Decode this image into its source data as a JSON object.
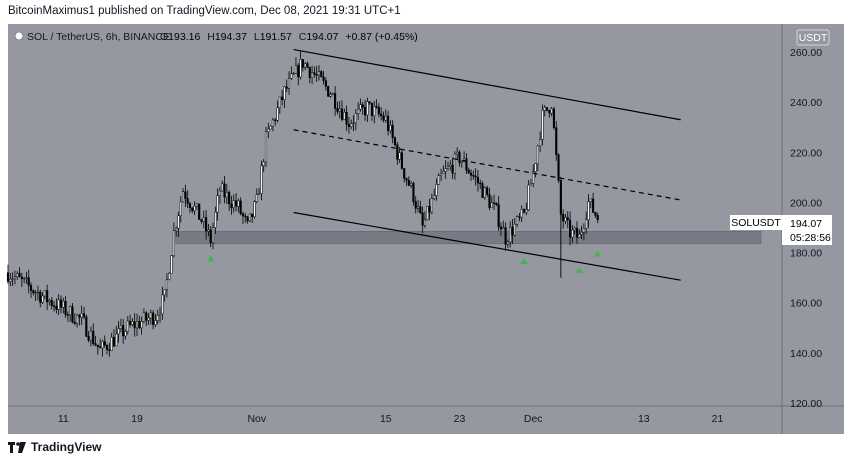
{
  "header": {
    "publisher_line": "BitcoinMaximus1 published on TradingView.com, Dec 08, 2021 19:31 UTC+1"
  },
  "legend": {
    "symbol": "SOL / TetherUS, 6h, BINANCE",
    "o_label": "O",
    "o_value": "193.16",
    "h_label": "H",
    "h_value": "194.37",
    "l_label": "L",
    "l_value": "191.57",
    "c_label": "C",
    "c_value": "194.07",
    "change": "+0.87 (+0.45%)"
  },
  "currency_button": "USDT",
  "price_tag": {
    "symbol": "SOLUSDT",
    "price": "194.07",
    "countdown": "05:28:56"
  },
  "footer": {
    "brand": "TradingView"
  },
  "colors": {
    "pane": "#9598a1",
    "support_zone": "#787b86",
    "arrow": "#4caf50",
    "candle": "#000000"
  },
  "chart_data": {
    "type": "candlestick",
    "ylim": [
      120,
      270
    ],
    "y_ticks": [
      "120.00",
      "140.00",
      "160.00",
      "180.00",
      "200.00",
      "220.00",
      "240.00",
      "260.00"
    ],
    "x_ticks": [
      "11",
      "19",
      "Nov",
      "15",
      "23",
      "Dec",
      "13",
      "21"
    ],
    "x_range": [
      "Oct 05 2021",
      "Dec 28 2021"
    ],
    "support_zone": [
      183.5,
      188.5
    ],
    "channel": {
      "upper": [
        [
          "Nov 05 2021",
          261
        ],
        [
          "Dec 17 2021",
          233
        ]
      ],
      "middle": [
        [
          "Nov 05 2021",
          229
        ],
        [
          "Dec 17 2021",
          201
        ]
      ],
      "lower": [
        [
          "Nov 05 2021",
          196
        ],
        [
          "Dec 17 2021",
          169
        ]
      ]
    },
    "support_arrows": [
      "Oct 27 2021",
      "Nov 30 2021",
      "Dec 06 2021",
      "Dec 08 2021"
    ],
    "anchors": [
      [
        "Oct 05 2021",
        172
      ],
      [
        "Oct 09 2021",
        162
      ],
      [
        "Oct 13 2021",
        153
      ],
      [
        "Oct 15 2021",
        141
      ],
      [
        "Oct 18 2021",
        150
      ],
      [
        "Oct 21 2021",
        155
      ],
      [
        "Oct 22 2021",
        162
      ],
      [
        "Oct 23 2021",
        188
      ],
      [
        "Oct 24 2021",
        205
      ],
      [
        "Oct 26 2021",
        193
      ],
      [
        "Oct 27 2021",
        185
      ],
      [
        "Oct 28 2021",
        205
      ],
      [
        "Oct 30 2021",
        198
      ],
      [
        "Oct 31 2021",
        190
      ],
      [
        "Nov 01 2021",
        200
      ],
      [
        "Nov 02 2021",
        225
      ],
      [
        "Nov 04 2021",
        244
      ],
      [
        "Nov 06 2021",
        256
      ],
      [
        "Nov 07 2021",
        252
      ],
      [
        "Nov 09 2021",
        244
      ],
      [
        "Nov 11 2021",
        232
      ],
      [
        "Nov 13 2021",
        238
      ],
      [
        "Nov 15 2021",
        233
      ],
      [
        "Nov 17 2021",
        212
      ],
      [
        "Nov 18 2021",
        203
      ],
      [
        "Nov 19 2021",
        190
      ],
      [
        "Nov 21 2021",
        210
      ],
      [
        "Nov 23 2021",
        218
      ],
      [
        "Nov 25 2021",
        208
      ],
      [
        "Nov 27 2021",
        196
      ],
      [
        "Nov 28 2021",
        186
      ],
      [
        "Nov 30 2021",
        195
      ],
      [
        "Dec 01 2021",
        212
      ],
      [
        "Dec 02 2021",
        234
      ],
      [
        "Dec 03 2021",
        240
      ],
      [
        "Dec 04 2021",
        195
      ],
      [
        "Dec 05 2021",
        188
      ],
      [
        "Dec 06 2021",
        186
      ],
      [
        "Dec 07 2021",
        200
      ],
      [
        "Dec 08 2021",
        194
      ]
    ]
  }
}
